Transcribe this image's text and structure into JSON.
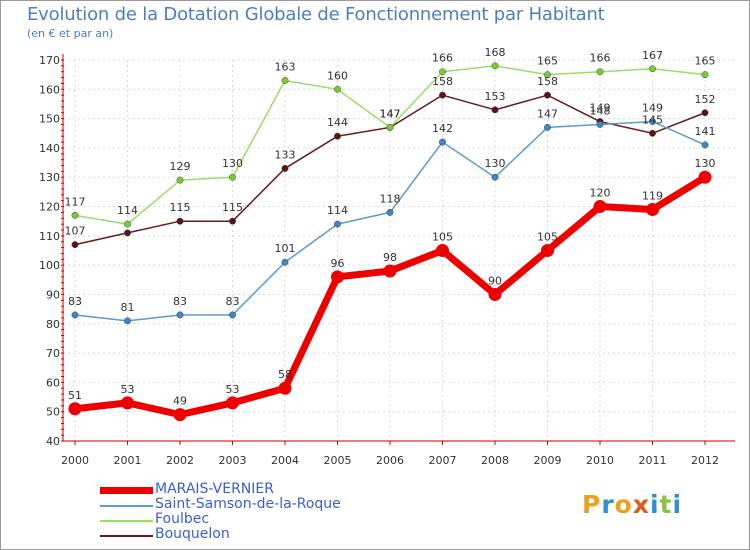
{
  "header": {
    "title": "Evolution de la Dotation Globale de Fonctionnement par Habitant",
    "subtitle": "(en € et par an)"
  },
  "logo": {
    "text": "Proxiti",
    "letters": [
      "P",
      "r",
      "o",
      "x",
      "i",
      "t",
      "i"
    ],
    "colors": [
      "#e8a321",
      "#2e8fd6",
      "#e8a321",
      "#e05a1c",
      "#2e8fd6",
      "#8ac440",
      "#2e8fd6"
    ]
  },
  "chart_data": {
    "type": "line",
    "title": "Evolution de la Dotation Globale de Fonctionnement par Habitant",
    "subtitle": "(en € et par an)",
    "xlabel": "",
    "ylabel": "",
    "x": [
      "2000",
      "2001",
      "2002",
      "2003",
      "2004",
      "2005",
      "2006",
      "2007",
      "2008",
      "2009",
      "2010",
      "2011",
      "2012"
    ],
    "ylim": [
      40,
      170
    ],
    "yticks": [
      40,
      50,
      60,
      70,
      80,
      90,
      100,
      110,
      120,
      130,
      140,
      150,
      160,
      170
    ],
    "grid": true,
    "legend_position": "bottom-left",
    "series": [
      {
        "name": "MARAIS-VERNIER",
        "values": [
          51,
          53,
          49,
          53,
          58,
          96,
          98,
          105,
          90,
          105,
          120,
          119,
          130
        ],
        "color": "#ee0000",
        "marker": "#ee0000",
        "bold": true
      },
      {
        "name": "Saint-Samson-de-la-Roque",
        "values": [
          83,
          81,
          83,
          83,
          101,
          114,
          118,
          142,
          130,
          147,
          148,
          149,
          141
        ],
        "color": "#5b9bd0",
        "marker": "#3f86c6",
        "bold": false
      },
      {
        "name": "Foulbec",
        "values": [
          117,
          114,
          129,
          130,
          163,
          160,
          147,
          166,
          168,
          165,
          166,
          167,
          165
        ],
        "color": "#99dd66",
        "marker": "#77cc33",
        "bold": false
      },
      {
        "name": "Bouquelon",
        "values": [
          107,
          111,
          115,
          115,
          133,
          144,
          147,
          158,
          153,
          158,
          149,
          145,
          152
        ],
        "color": "#6b1a1a",
        "marker": "#5a1212",
        "bold": false
      }
    ],
    "point_labels": [
      {
        "series": "MARAIS-VERNIER",
        "labels": [
          "51",
          "53",
          "49",
          "53",
          "58",
          "96",
          "98",
          "105",
          "90",
          "105",
          "120",
          "119",
          "130"
        ]
      },
      {
        "series": "Saint-Samson-de-la-Roque",
        "labels": [
          "83",
          "81",
          "83",
          "83",
          "101",
          "114",
          "118",
          "142",
          "130",
          "147",
          "148",
          "149",
          "141"
        ]
      },
      {
        "series": "Foulbec",
        "labels": [
          "117",
          "114",
          "129",
          "130",
          "163",
          "160",
          "147",
          "166",
          "168",
          "165",
          "166",
          "167",
          "165"
        ]
      },
      {
        "series": "Bouquelon",
        "labels": [
          "107",
          "",
          "115",
          "115",
          "133",
          "144",
          "147",
          "158",
          "153",
          "158",
          "149",
          "145",
          "152"
        ]
      }
    ]
  }
}
